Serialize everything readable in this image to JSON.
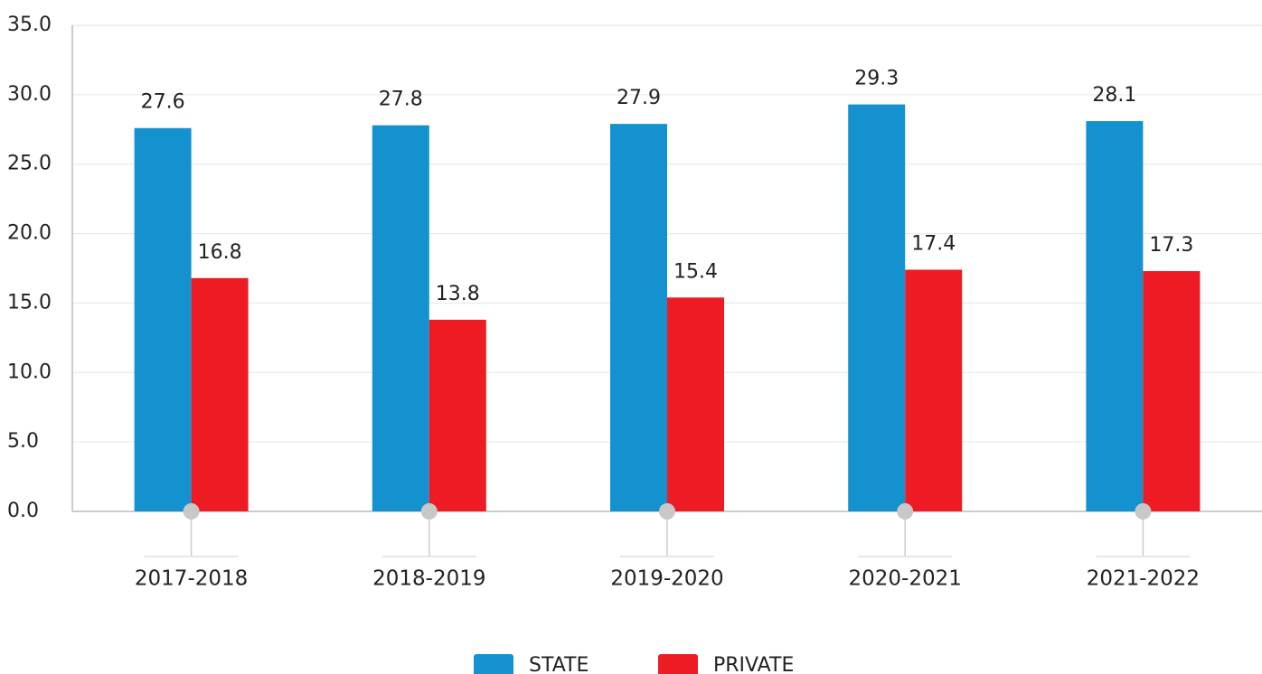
{
  "chart_data": {
    "type": "bar",
    "categories": [
      "2017-2018",
      "2018-2019",
      "2019-2020",
      "2020-2021",
      "2021-2022"
    ],
    "series": [
      {
        "name": "STATE",
        "color": "#1492d0",
        "values": [
          27.6,
          27.8,
          27.9,
          29.3,
          28.1
        ]
      },
      {
        "name": "PRIVATE",
        "color": "#ed1c24",
        "values": [
          16.8,
          13.8,
          15.4,
          17.4,
          17.3
        ]
      }
    ],
    "ylim": [
      0,
      35
    ],
    "yticks": [
      {
        "value": 0,
        "label": "0.0"
      },
      {
        "value": 5,
        "label": "5.0"
      },
      {
        "value": 10,
        "label": "10.0"
      },
      {
        "value": 15,
        "label": "15.0"
      },
      {
        "value": 20,
        "label": "20.0"
      },
      {
        "value": 25,
        "label": "25.0"
      },
      {
        "value": 30,
        "label": "30.0"
      },
      {
        "value": 35,
        "label": "35.0"
      }
    ],
    "grid": true,
    "legend": "bottom"
  }
}
